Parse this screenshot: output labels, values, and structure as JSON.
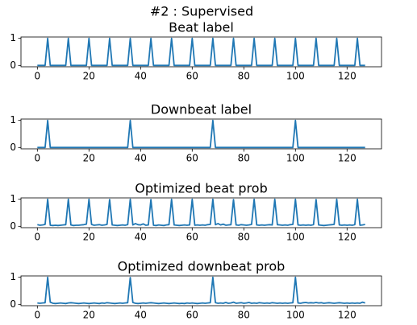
{
  "title": "#2 : Supervised",
  "chart_data": [
    {
      "type": "line",
      "title": "Beat label",
      "color": "#1f77b4",
      "xlim": [
        -6.35,
        133.35
      ],
      "ylim": [
        -0.05,
        1.05
      ],
      "xticks": [
        0,
        20,
        40,
        60,
        80,
        100,
        120
      ],
      "yticks": [
        0,
        1
      ],
      "values": [
        0,
        0,
        0,
        0,
        1,
        0,
        0,
        0,
        0,
        0,
        0,
        0,
        1,
        0,
        0,
        0,
        0,
        0,
        0,
        0,
        1,
        0,
        0,
        0,
        0,
        0,
        0,
        0,
        1,
        0,
        0,
        0,
        0,
        0,
        0,
        0,
        1,
        0,
        0,
        0,
        0,
        0,
        0,
        0,
        1,
        0,
        0,
        0,
        0,
        0,
        0,
        0,
        1,
        0,
        0,
        0,
        0,
        0,
        0,
        0,
        1,
        0,
        0,
        0,
        0,
        0,
        0,
        0,
        1,
        0,
        0,
        0,
        0,
        0,
        0,
        0,
        1,
        0,
        0,
        0,
        0,
        0,
        0,
        0,
        1,
        0,
        0,
        0,
        0,
        0,
        0,
        0,
        1,
        0,
        0,
        0,
        0,
        0,
        0,
        0,
        1,
        0,
        0,
        0,
        0,
        0,
        0,
        0,
        1,
        0,
        0,
        0,
        0,
        0,
        0,
        0,
        1,
        0,
        0,
        0,
        0,
        0,
        0,
        0,
        1,
        0,
        0,
        0
      ]
    },
    {
      "type": "line",
      "title": "Downbeat label",
      "color": "#1f77b4",
      "xlim": [
        -6.35,
        133.35
      ],
      "ylim": [
        -0.05,
        1.05
      ],
      "xticks": [
        0,
        20,
        40,
        60,
        80,
        100,
        120
      ],
      "yticks": [
        0,
        1
      ],
      "values": [
        0,
        0,
        0,
        0,
        1,
        0,
        0,
        0,
        0,
        0,
        0,
        0,
        0,
        0,
        0,
        0,
        0,
        0,
        0,
        0,
        0,
        0,
        0,
        0,
        0,
        0,
        0,
        0,
        0,
        0,
        0,
        0,
        0,
        0,
        0,
        0,
        1,
        0,
        0,
        0,
        0,
        0,
        0,
        0,
        0,
        0,
        0,
        0,
        0,
        0,
        0,
        0,
        0,
        0,
        0,
        0,
        0,
        0,
        0,
        0,
        0,
        0,
        0,
        0,
        0,
        0,
        0,
        0,
        1,
        0,
        0,
        0,
        0,
        0,
        0,
        0,
        0,
        0,
        0,
        0,
        0,
        0,
        0,
        0,
        0,
        0,
        0,
        0,
        0,
        0,
        0,
        0,
        0,
        0,
        0,
        0,
        0,
        0,
        0,
        0,
        1,
        0,
        0,
        0,
        0,
        0,
        0,
        0,
        0,
        0,
        0,
        0,
        0,
        0,
        0,
        0,
        0,
        0,
        0,
        0,
        0,
        0,
        0,
        0,
        0,
        0,
        0,
        0
      ]
    },
    {
      "type": "line",
      "title": "Optimized beat prob",
      "color": "#1f77b4",
      "xlim": [
        -6.35,
        133.35
      ],
      "ylim": [
        -0.05,
        1.05
      ],
      "xticks": [
        0,
        20,
        40,
        60,
        80,
        100,
        120
      ],
      "yticks": [
        0,
        1
      ],
      "values": [
        0.06,
        0.04,
        0.05,
        0.07,
        1.0,
        0.04,
        0.03,
        0.04,
        0.03,
        0.04,
        0.05,
        0.06,
        1.0,
        0.05,
        0.03,
        0.04,
        0.04,
        0.05,
        0.06,
        0.08,
        1.0,
        0.07,
        0.04,
        0.05,
        0.06,
        0.04,
        0.05,
        0.07,
        0.99,
        0.05,
        0.04,
        0.03,
        0.04,
        0.05,
        0.04,
        0.06,
        1.0,
        0.05,
        0.1,
        0.06,
        0.05,
        0.09,
        0.04,
        0.05,
        0.99,
        0.04,
        0.03,
        0.05,
        0.04,
        0.03,
        0.05,
        0.06,
        1.0,
        0.05,
        0.04,
        0.03,
        0.04,
        0.05,
        0.04,
        0.05,
        1.0,
        0.04,
        0.05,
        0.04,
        0.05,
        0.04,
        0.06,
        0.07,
        1.0,
        0.06,
        0.1,
        0.05,
        0.08,
        0.04,
        0.05,
        0.06,
        0.99,
        0.05,
        0.04,
        0.06,
        0.05,
        0.04,
        0.05,
        0.07,
        1.0,
        0.05,
        0.04,
        0.05,
        0.04,
        0.05,
        0.06,
        0.05,
        1.0,
        0.06,
        0.05,
        0.04,
        0.05,
        0.04,
        0.06,
        0.07,
        1.0,
        0.05,
        0.04,
        0.05,
        0.04,
        0.05,
        0.04,
        0.06,
        0.99,
        0.05,
        0.04,
        0.03,
        0.04,
        0.05,
        0.06,
        0.07,
        1.0,
        0.05,
        0.04,
        0.05,
        0.04,
        0.05,
        0.04,
        0.06,
        1.0,
        0.04,
        0.05,
        0.07
      ]
    },
    {
      "type": "line",
      "title": "Optimized downbeat prob",
      "color": "#1f77b4",
      "xlim": [
        -6.35,
        133.35
      ],
      "ylim": [
        -0.05,
        1.05
      ],
      "xticks": [
        0,
        20,
        40,
        60,
        80,
        100,
        120
      ],
      "yticks": [
        0,
        1
      ],
      "values": [
        0.05,
        0.04,
        0.05,
        0.06,
        1.0,
        0.08,
        0.04,
        0.03,
        0.04,
        0.05,
        0.04,
        0.03,
        0.05,
        0.06,
        0.05,
        0.04,
        0.03,
        0.04,
        0.05,
        0.04,
        0.03,
        0.04,
        0.05,
        0.04,
        0.03,
        0.05,
        0.04,
        0.06,
        0.05,
        0.04,
        0.03,
        0.04,
        0.05,
        0.04,
        0.05,
        0.06,
        0.99,
        0.07,
        0.04,
        0.03,
        0.04,
        0.05,
        0.04,
        0.05,
        0.06,
        0.05,
        0.04,
        0.03,
        0.04,
        0.05,
        0.04,
        0.03,
        0.04,
        0.05,
        0.04,
        0.03,
        0.04,
        0.03,
        0.05,
        0.04,
        0.05,
        0.04,
        0.03,
        0.04,
        0.05,
        0.04,
        0.05,
        0.06,
        1.0,
        0.06,
        0.04,
        0.05,
        0.04,
        0.07,
        0.04,
        0.05,
        0.08,
        0.04,
        0.05,
        0.06,
        0.04,
        0.05,
        0.07,
        0.04,
        0.05,
        0.04,
        0.06,
        0.05,
        0.04,
        0.05,
        0.04,
        0.06,
        0.05,
        0.04,
        0.05,
        0.04,
        0.05,
        0.04,
        0.05,
        0.06,
        1.0,
        0.05,
        0.04,
        0.06,
        0.07,
        0.05,
        0.06,
        0.05,
        0.07,
        0.05,
        0.06,
        0.04,
        0.05,
        0.06,
        0.05,
        0.04,
        0.05,
        0.06,
        0.05,
        0.04,
        0.05,
        0.04,
        0.05,
        0.04,
        0.05,
        0.04,
        0.08,
        0.05
      ]
    }
  ]
}
